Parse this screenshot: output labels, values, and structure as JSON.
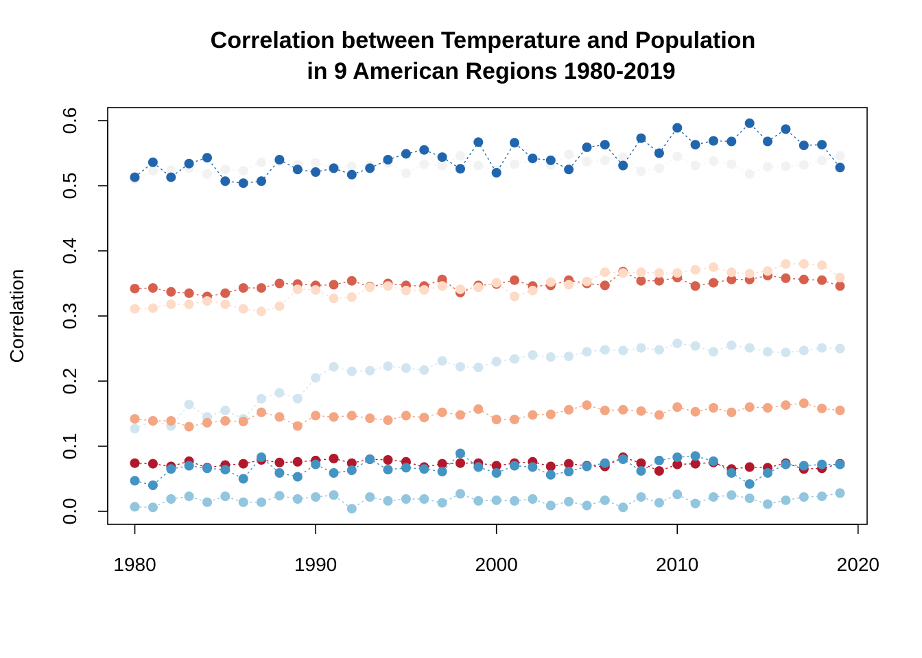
{
  "chart_data": {
    "type": "scatter",
    "title": "Correlation between Temperature and Population",
    "subtitle": "in 9 American Regions 1980-2019",
    "xlabel": "",
    "ylabel": "Correlation",
    "xlim": [
      1978.5,
      2020.5
    ],
    "ylim": [
      -0.02,
      0.62
    ],
    "x_ticks": [
      "1980",
      "1990",
      "2000",
      "2010",
      "2020"
    ],
    "y_ticks": [
      "0.0",
      "0.1",
      "0.2",
      "0.3",
      "0.4",
      "0.5",
      "0.6"
    ],
    "grid": false,
    "x": [
      1980,
      1981,
      1982,
      1983,
      1984,
      1985,
      1986,
      1987,
      1988,
      1989,
      1990,
      1991,
      1992,
      1993,
      1994,
      1995,
      1996,
      1997,
      1998,
      1999,
      2000,
      2001,
      2002,
      2003,
      2004,
      2005,
      2006,
      2007,
      2008,
      2009,
      2010,
      2011,
      2012,
      2013,
      2014,
      2015,
      2016,
      2017,
      2018,
      2019
    ],
    "series": [
      {
        "color": "#f2f2f2",
        "values": [
          0.51,
          0.523,
          0.524,
          0.527,
          0.518,
          0.525,
          0.523,
          0.536,
          0.538,
          0.532,
          0.535,
          0.527,
          0.53,
          0.531,
          0.535,
          0.519,
          0.533,
          0.531,
          0.546,
          0.531,
          0.524,
          0.533,
          0.54,
          0.532,
          0.548,
          0.537,
          0.539,
          0.544,
          0.522,
          0.527,
          0.545,
          0.531,
          0.538,
          0.533,
          0.518,
          0.529,
          0.53,
          0.532,
          0.539,
          0.546
        ]
      },
      {
        "color": "#2166ac",
        "values": [
          0.513,
          0.536,
          0.513,
          0.534,
          0.543,
          0.507,
          0.504,
          0.507,
          0.54,
          0.525,
          0.521,
          0.527,
          0.517,
          0.527,
          0.54,
          0.549,
          0.555,
          0.544,
          0.526,
          0.567,
          0.52,
          0.566,
          0.542,
          0.539,
          0.525,
          0.559,
          0.563,
          0.531,
          0.573,
          0.55,
          0.589,
          0.563,
          0.569,
          0.568,
          0.596,
          0.568,
          0.587,
          0.562,
          0.563,
          0.528
        ]
      },
      {
        "color": "#d6604d",
        "values": [
          0.342,
          0.343,
          0.337,
          0.335,
          0.33,
          0.335,
          0.343,
          0.343,
          0.35,
          0.349,
          0.347,
          0.348,
          0.354,
          0.345,
          0.35,
          0.347,
          0.346,
          0.356,
          0.336,
          0.347,
          0.349,
          0.355,
          0.346,
          0.347,
          0.355,
          0.35,
          0.347,
          0.368,
          0.354,
          0.354,
          0.359,
          0.346,
          0.351,
          0.356,
          0.356,
          0.362,
          0.358,
          0.356,
          0.355,
          0.346
        ]
      },
      {
        "color": "#fddbc7",
        "values": [
          0.311,
          0.312,
          0.318,
          0.318,
          0.323,
          0.318,
          0.311,
          0.307,
          0.315,
          0.341,
          0.34,
          0.327,
          0.329,
          0.344,
          0.346,
          0.339,
          0.34,
          0.346,
          0.341,
          0.344,
          0.351,
          0.33,
          0.339,
          0.352,
          0.348,
          0.353,
          0.367,
          0.366,
          0.367,
          0.366,
          0.366,
          0.371,
          0.375,
          0.367,
          0.365,
          0.369,
          0.38,
          0.38,
          0.378,
          0.359
        ]
      },
      {
        "color": "#d1e5f0",
        "values": [
          0.127,
          0.139,
          0.131,
          0.164,
          0.145,
          0.155,
          0.142,
          0.173,
          0.182,
          0.173,
          0.205,
          0.222,
          0.215,
          0.216,
          0.223,
          0.22,
          0.217,
          0.231,
          0.222,
          0.221,
          0.23,
          0.234,
          0.24,
          0.237,
          0.238,
          0.245,
          0.248,
          0.247,
          0.251,
          0.248,
          0.258,
          0.254,
          0.245,
          0.255,
          0.251,
          0.245,
          0.244,
          0.247,
          0.251,
          0.25
        ]
      },
      {
        "color": "#f4a582",
        "values": [
          0.142,
          0.139,
          0.139,
          0.13,
          0.136,
          0.139,
          0.138,
          0.152,
          0.145,
          0.131,
          0.147,
          0.145,
          0.147,
          0.143,
          0.14,
          0.147,
          0.144,
          0.152,
          0.148,
          0.157,
          0.141,
          0.141,
          0.148,
          0.149,
          0.156,
          0.163,
          0.155,
          0.156,
          0.154,
          0.148,
          0.16,
          0.153,
          0.159,
          0.152,
          0.16,
          0.159,
          0.163,
          0.166,
          0.158,
          0.155
        ]
      },
      {
        "color": "#b2182b",
        "values": [
          0.074,
          0.073,
          0.069,
          0.077,
          0.067,
          0.071,
          0.073,
          0.079,
          0.075,
          0.076,
          0.078,
          0.081,
          0.074,
          0.08,
          0.079,
          0.076,
          0.068,
          0.073,
          0.074,
          0.074,
          0.07,
          0.074,
          0.076,
          0.069,
          0.073,
          0.07,
          0.069,
          0.083,
          0.074,
          0.062,
          0.072,
          0.073,
          0.075,
          0.065,
          0.068,
          0.067,
          0.074,
          0.065,
          0.066,
          0.073
        ]
      },
      {
        "color": "#4393c3",
        "values": [
          0.047,
          0.04,
          0.065,
          0.07,
          0.066,
          0.064,
          0.05,
          0.083,
          0.059,
          0.053,
          0.072,
          0.059,
          0.063,
          0.08,
          0.064,
          0.067,
          0.065,
          0.061,
          0.089,
          0.068,
          0.059,
          0.07,
          0.068,
          0.056,
          0.061,
          0.069,
          0.074,
          0.08,
          0.062,
          0.078,
          0.083,
          0.085,
          0.077,
          0.059,
          0.042,
          0.059,
          0.072,
          0.07,
          0.072,
          0.072
        ]
      },
      {
        "color": "#92c5de",
        "values": [
          0.007,
          0.006,
          0.019,
          0.023,
          0.014,
          0.023,
          0.014,
          0.014,
          0.024,
          0.019,
          0.022,
          0.025,
          0.004,
          0.022,
          0.016,
          0.019,
          0.019,
          0.013,
          0.027,
          0.016,
          0.017,
          0.016,
          0.019,
          0.009,
          0.015,
          0.009,
          0.017,
          0.006,
          0.022,
          0.013,
          0.026,
          0.012,
          0.022,
          0.025,
          0.02,
          0.011,
          0.017,
          0.022,
          0.023,
          0.028
        ]
      }
    ]
  }
}
